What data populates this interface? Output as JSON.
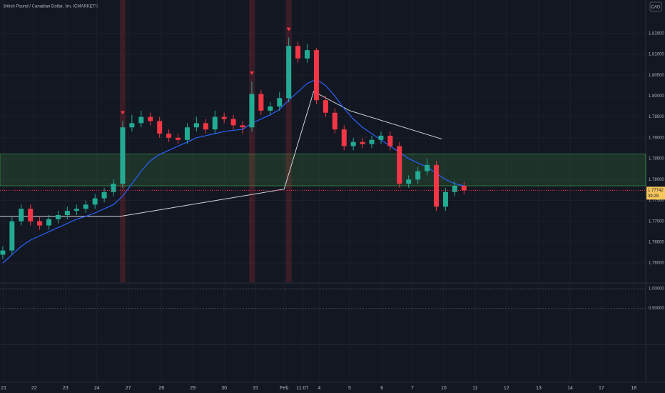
{
  "chart_data": {
    "type": "candlestick",
    "title": "British Pound / Canadian Dollar, 5m, ICMARKETS",
    "currency": "CAD",
    "up_color": "#22ab94",
    "down_color": "#f23645",
    "ma_color": "#2962ff",
    "grid": true,
    "xlim": [
      0,
      70
    ],
    "ylim": [
      1.7554,
      1.823
    ],
    "yticks": [
      {
        "value": 1.815,
        "label": "1.81500"
      },
      {
        "value": 1.81,
        "label": "1.81000"
      },
      {
        "value": 1.805,
        "label": "1.80500"
      },
      {
        "value": 1.8,
        "label": "1.80000"
      },
      {
        "value": 1.795,
        "label": "1.79500"
      },
      {
        "value": 1.79,
        "label": "1.79000"
      },
      {
        "value": 1.785,
        "label": "1.78500"
      },
      {
        "value": 1.78,
        "label": "1.78000"
      },
      {
        "value": 1.775,
        "label": "1.77500"
      },
      {
        "value": 1.77,
        "label": "1.77000"
      },
      {
        "value": 1.765,
        "label": "1.76500"
      },
      {
        "value": 1.76,
        "label": "1.76000"
      }
    ],
    "xticks": [
      {
        "value": 0.4,
        "label": "21"
      },
      {
        "value": 3.7,
        "label": "22"
      },
      {
        "value": 7.1,
        "label": "23"
      },
      {
        "value": 10.5,
        "label": "24"
      },
      {
        "value": 13.9,
        "label": "27"
      },
      {
        "value": 17.5,
        "label": "28"
      },
      {
        "value": 20.9,
        "label": "29"
      },
      {
        "value": 24.3,
        "label": "30"
      },
      {
        "value": 27.7,
        "label": "31"
      },
      {
        "value": 30.8,
        "label": "Feb"
      },
      {
        "value": 32.8,
        "label": "11:07"
      },
      {
        "value": 34.6,
        "label": "4"
      },
      {
        "value": 37.9,
        "label": "5"
      },
      {
        "value": 41.4,
        "label": "6"
      },
      {
        "value": 44.7,
        "label": "7"
      },
      {
        "value": 48.1,
        "label": "10"
      },
      {
        "value": 51.5,
        "label": "11"
      },
      {
        "value": 54.9,
        "label": "12"
      },
      {
        "value": 58.4,
        "label": "13"
      },
      {
        "value": 61.8,
        "label": "14"
      },
      {
        "value": 65.2,
        "label": "17"
      },
      {
        "value": 68.7,
        "label": "18"
      }
    ],
    "open": [
      1.762,
      1.763,
      1.77,
      1.773,
      1.77,
      1.769,
      1.7705,
      1.7715,
      1.7725,
      1.773,
      1.774,
      1.7755,
      1.777,
      1.779,
      1.7925,
      1.7935,
      1.795,
      1.794,
      1.791,
      1.79,
      1.7895,
      1.7925,
      1.7935,
      1.792,
      1.795,
      1.7945,
      1.793,
      1.7925,
      1.8005,
      1.7965,
      1.7975,
      1.7995,
      1.812,
      1.809,
      1.811,
      1.799,
      1.796,
      1.792,
      1.788,
      1.789,
      1.7885,
      1.7895,
      1.7905,
      1.788,
      1.779,
      1.78,
      1.782,
      1.7835,
      1.7735,
      1.777,
      1.7785
    ],
    "high": [
      1.764,
      1.771,
      1.774,
      1.774,
      1.771,
      1.7715,
      1.7725,
      1.7735,
      1.774,
      1.775,
      1.7765,
      1.778,
      1.78,
      1.794,
      1.7955,
      1.7965,
      1.796,
      1.795,
      1.792,
      1.791,
      1.7935,
      1.795,
      1.7945,
      1.7965,
      1.796,
      1.7955,
      1.794,
      1.8035,
      1.8015,
      1.7985,
      1.801,
      1.814,
      1.813,
      1.8125,
      1.8115,
      1.8,
      1.797,
      1.793,
      1.79,
      1.79,
      1.7905,
      1.7915,
      1.7915,
      1.789,
      1.781,
      1.783,
      1.785,
      1.7845,
      1.778,
      1.7795,
      1.7795
    ],
    "low": [
      1.761,
      1.762,
      1.769,
      1.769,
      1.768,
      1.768,
      1.7695,
      1.7705,
      1.7715,
      1.772,
      1.773,
      1.7745,
      1.776,
      1.778,
      1.7915,
      1.7925,
      1.793,
      1.79,
      1.789,
      1.7885,
      1.7885,
      1.7915,
      1.791,
      1.791,
      1.7935,
      1.792,
      1.791,
      1.7915,
      1.7955,
      1.7955,
      1.7965,
      1.7985,
      1.808,
      1.808,
      1.798,
      1.795,
      1.791,
      1.787,
      1.787,
      1.7875,
      1.7875,
      1.7885,
      1.787,
      1.778,
      1.778,
      1.779,
      1.781,
      1.7725,
      1.7725,
      1.776,
      1.7765
    ],
    "close": [
      1.763,
      1.77,
      1.773,
      1.77,
      1.769,
      1.7705,
      1.7715,
      1.7725,
      1.773,
      1.774,
      1.7755,
      1.777,
      1.779,
      1.7925,
      1.7935,
      1.795,
      1.794,
      1.791,
      1.79,
      1.7895,
      1.7925,
      1.7935,
      1.792,
      1.795,
      1.7945,
      1.793,
      1.7925,
      1.8005,
      1.7965,
      1.7975,
      1.7995,
      1.812,
      1.809,
      1.811,
      1.799,
      1.796,
      1.792,
      1.788,
      1.789,
      1.7885,
      1.7895,
      1.7905,
      1.788,
      1.779,
      1.78,
      1.782,
      1.7835,
      1.7735,
      1.777,
      1.7785,
      1.77742
    ],
    "ma": [
      1.76,
      1.762,
      1.764,
      1.7655,
      1.7665,
      1.7675,
      1.7685,
      1.7695,
      1.7705,
      1.7712,
      1.772,
      1.773,
      1.774,
      1.776,
      1.779,
      1.782,
      1.7845,
      1.786,
      1.787,
      1.788,
      1.789,
      1.79,
      1.7905,
      1.791,
      1.7915,
      1.7918,
      1.792,
      1.7935,
      1.7945,
      1.7955,
      1.7968,
      1.799,
      1.801,
      1.803,
      1.804,
      1.8025,
      1.8,
      1.797,
      1.7945,
      1.7925,
      1.791,
      1.7895,
      1.788,
      1.7865,
      1.785,
      1.784,
      1.783,
      1.7815,
      1.78,
      1.779,
      1.7785
    ],
    "pivot_x": [
      0,
      13.1,
      30.8,
      34.0,
      37.9,
      47.9
    ],
    "pivot_y": [
      1.7712,
      1.7712,
      1.7777,
      1.8011,
      1.7965,
      1.7897
    ],
    "zone": [
      1.7785,
      1.7861
    ],
    "highlight_indices": [
      13,
      27,
      31
    ],
    "last_price": 1.77742,
    "countdown": "39:29",
    "osc_ylim": [
      -0.4,
      1.13
    ],
    "osc_yticks": [
      {
        "value": 1,
        "label": "1.00000"
      },
      {
        "value": 0.5,
        "label": "0.50000"
      }
    ]
  }
}
